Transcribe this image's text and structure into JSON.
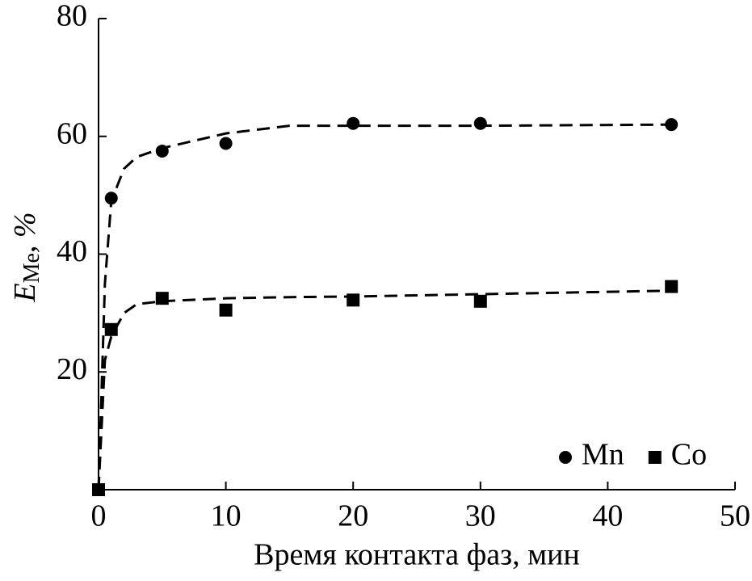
{
  "chart_data": {
    "type": "scatter",
    "xlabel": "Время контакта фаз, мин",
    "ylabel": {
      "main": "E",
      "sub": "Me",
      "suffix": ", %"
    },
    "xlim": [
      0,
      50
    ],
    "xticks": [
      0,
      10,
      20,
      30,
      40,
      50
    ],
    "ylim": [
      0,
      80
    ],
    "yticks": [
      20,
      40,
      60,
      80
    ],
    "legend": "lower right",
    "x": [
      0,
      1,
      5,
      10,
      20,
      30,
      45
    ],
    "trend_x": [
      0,
      0.5,
      1,
      2,
      3,
      5,
      10,
      15,
      20,
      30,
      45
    ],
    "series": [
      {
        "name": "Mn",
        "color": "#000000",
        "marker": "circle",
        "values": [
          0,
          49.5,
          57.5,
          58.8,
          62.2,
          62.2,
          62.0
        ],
        "trend": [
          0,
          35,
          49,
          54.5,
          56.5,
          58,
          60.5,
          61.8,
          61.8,
          61.8,
          62
        ]
      },
      {
        "name": "Co",
        "color": "#000000",
        "marker": "square",
        "values": [
          0,
          27.2,
          32.5,
          30.5,
          32.2,
          32.0,
          34.5
        ],
        "trend": [
          0,
          22,
          26,
          30,
          31.5,
          32,
          32.5,
          32.7,
          32.8,
          33.2,
          33.8
        ]
      }
    ]
  }
}
